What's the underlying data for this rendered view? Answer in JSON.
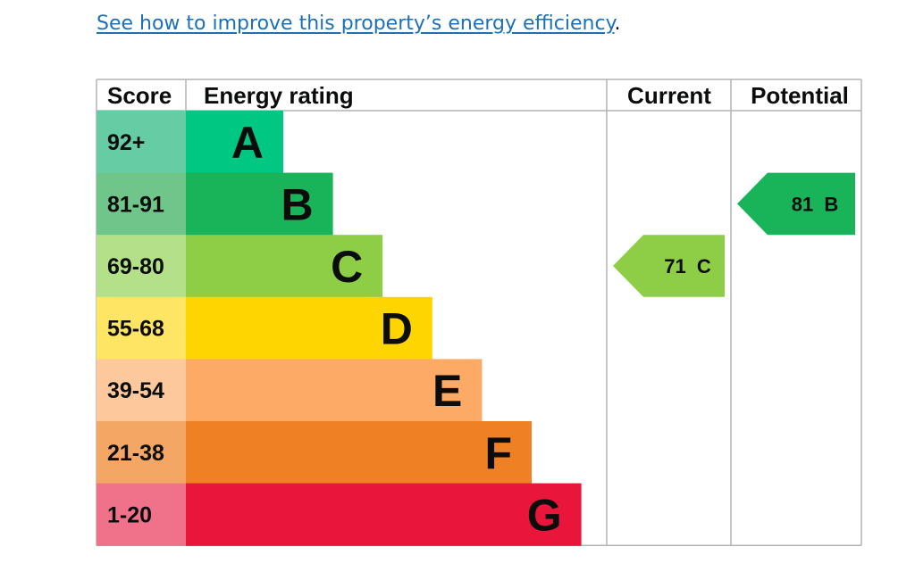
{
  "link": {
    "text": "See how to improve this property’s energy efficiency",
    "trailing": "."
  },
  "chart_data": {
    "type": "bar",
    "headers": {
      "score": "Score",
      "rating": "Energy rating",
      "current": "Current",
      "potential": "Potential"
    },
    "bands": [
      {
        "letter": "A",
        "range": "92+",
        "color": "#00c781",
        "score_bg": "#65cca4"
      },
      {
        "letter": "B",
        "range": "81-91",
        "color": "#19b459",
        "score_bg": "#70c68a"
      },
      {
        "letter": "C",
        "range": "69-80",
        "color": "#8dce46",
        "score_bg": "#b5e08a"
      },
      {
        "letter": "D",
        "range": "55-68",
        "color": "#ffd500",
        "score_bg": "#ffe564"
      },
      {
        "letter": "E",
        "range": "39-54",
        "color": "#fcaa65",
        "score_bg": "#fdc89b"
      },
      {
        "letter": "F",
        "range": "21-38",
        "color": "#ef8023",
        "score_bg": "#f4a664"
      },
      {
        "letter": "G",
        "range": "1-20",
        "color": "#e9153b",
        "score_bg": "#f0728a"
      }
    ],
    "current": {
      "value": 71,
      "band": "C",
      "label": "71  C"
    },
    "potential": {
      "value": 81,
      "band": "B",
      "label": "81  B"
    }
  }
}
